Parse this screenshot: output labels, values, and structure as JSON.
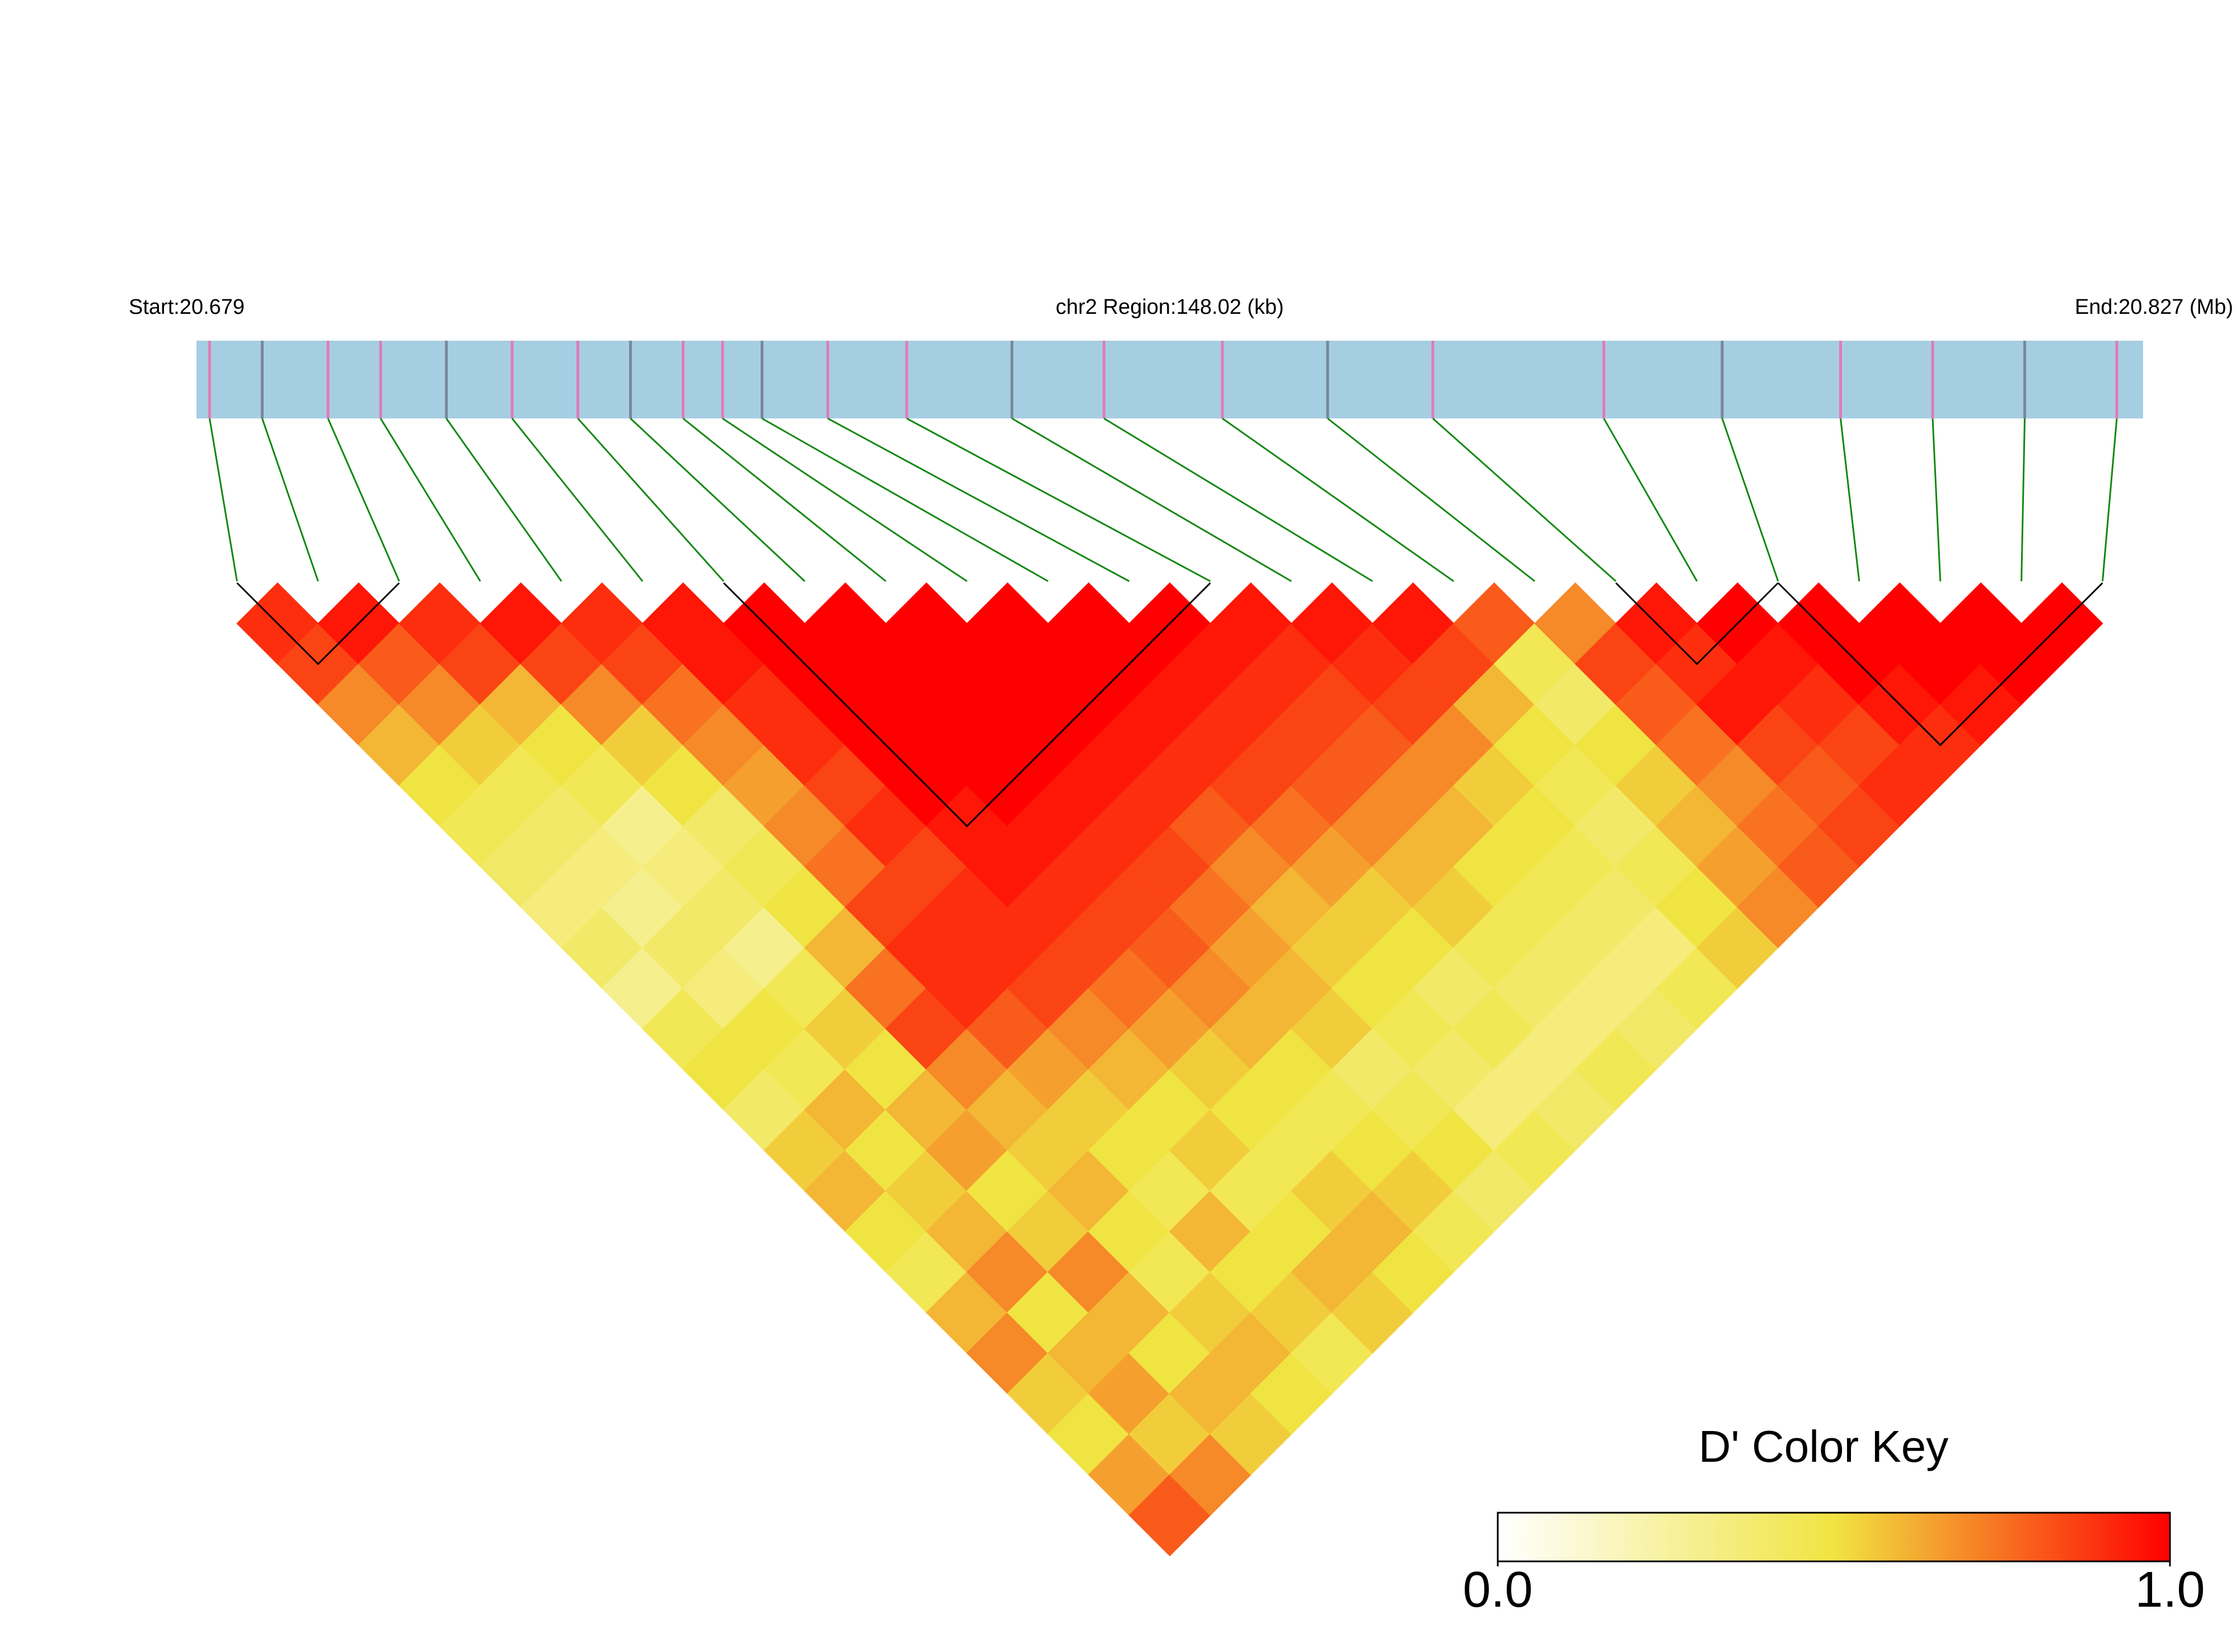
{
  "chart_data": {
    "type": "ld_heatmap",
    "title": "chr2 Region:148.02 (kb)",
    "start_label": "Start:20.679",
    "end_label": "End:20.827 (Mb)",
    "xlim": [
      20.679,
      20.827
    ],
    "snp_positions": [
      20.68,
      20.684,
      20.689,
      20.693,
      20.698,
      20.703,
      20.708,
      20.712,
      20.716,
      20.719,
      20.722,
      20.727,
      20.733,
      20.741,
      20.748,
      20.757,
      20.765,
      20.773,
      20.786,
      20.795,
      20.804,
      20.811,
      20.818,
      20.825
    ],
    "matrix": [
      [
        0.9,
        0.85,
        0.7,
        0.6,
        0.5,
        0.45,
        0.4,
        0.35,
        0.4,
        0.3,
        0.45,
        0.5,
        0.4,
        0.55,
        0.6,
        0.5,
        0.45,
        0.6,
        0.7,
        0.55,
        0.5,
        0.65,
        0.8
      ],
      [
        0.95,
        0.8,
        0.7,
        0.55,
        0.45,
        0.4,
        0.35,
        0.3,
        0.4,
        0.35,
        0.5,
        0.45,
        0.6,
        0.5,
        0.55,
        0.6,
        0.7,
        0.5,
        0.6,
        0.65,
        0.55,
        0.7
      ],
      [
        0.9,
        0.85,
        0.6,
        0.5,
        0.45,
        0.3,
        0.35,
        0.4,
        0.3,
        0.45,
        0.55,
        0.5,
        0.6,
        0.65,
        0.5,
        0.55,
        0.7,
        0.6,
        0.5,
        0.6,
        0.55
      ],
      [
        0.95,
        0.85,
        0.7,
        0.55,
        0.5,
        0.4,
        0.45,
        0.5,
        0.6,
        0.75,
        0.85,
        0.7,
        0.6,
        0.55,
        0.6,
        0.5,
        0.45,
        0.55,
        0.6,
        0.5
      ],
      [
        0.9,
        0.85,
        0.75,
        0.7,
        0.65,
        0.7,
        0.75,
        0.85,
        0.9,
        0.9,
        0.8,
        0.65,
        0.55,
        0.5,
        0.45,
        0.6,
        0.5,
        0.55,
        0.45
      ],
      [
        0.95,
        0.95,
        0.9,
        0.9,
        0.85,
        0.9,
        0.85,
        0.9,
        0.9,
        0.85,
        0.7,
        0.6,
        0.5,
        0.55,
        0.45,
        0.5,
        0.6,
        0.55
      ],
      [
        1,
        1,
        1,
        1,
        1,
        0.95,
        0.95,
        0.9,
        0.85,
        0.75,
        0.65,
        0.55,
        0.5,
        0.45,
        0.55,
        0.6,
        0.5
      ],
      [
        1,
        1,
        1,
        1,
        1,
        0.95,
        0.9,
        0.85,
        0.8,
        0.7,
        0.6,
        0.5,
        0.45,
        0.5,
        0.55,
        0.45
      ],
      [
        1,
        1,
        1,
        1,
        0.95,
        0.9,
        0.85,
        0.75,
        0.65,
        0.6,
        0.55,
        0.4,
        0.45,
        0.5,
        0.4
      ],
      [
        1,
        1,
        1,
        0.95,
        0.9,
        0.8,
        0.7,
        0.6,
        0.55,
        0.5,
        0.45,
        0.4,
        0.35,
        0.45
      ],
      [
        1,
        1,
        0.95,
        0.9,
        0.85,
        0.75,
        0.65,
        0.55,
        0.5,
        0.4,
        0.45,
        0.35,
        0.4
      ],
      [
        1,
        0.95,
        0.9,
        0.85,
        0.8,
        0.7,
        0.6,
        0.55,
        0.45,
        0.4,
        0.35,
        0.45
      ],
      [
        0.95,
        0.9,
        0.85,
        0.8,
        0.7,
        0.6,
        0.5,
        0.45,
        0.4,
        0.35,
        0.4
      ],
      [
        0.95,
        0.9,
        0.85,
        0.7,
        0.55,
        0.5,
        0.45,
        0.4,
        0.35,
        0.45
      ],
      [
        0.95,
        0.85,
        0.6,
        0.5,
        0.45,
        0.4,
        0.45,
        0.5,
        0.55
      ],
      [
        0.8,
        0.45,
        0.4,
        0.5,
        0.55,
        0.6,
        0.65,
        0.7
      ],
      [
        0.7,
        0.85,
        0.8,
        0.75,
        0.7,
        0.75,
        0.8
      ],
      [
        0.95,
        0.9,
        0.95,
        0.85,
        0.8,
        0.85
      ],
      [
        1,
        0.95,
        0.9,
        0.85,
        0.9
      ],
      [
        1,
        1,
        0.95,
        0.9
      ],
      [
        1,
        1,
        0.95
      ],
      [
        1,
        1
      ],
      [
        1
      ]
    ],
    "blocks": [
      [
        0,
        2
      ],
      [
        6,
        12
      ],
      [
        17,
        19
      ],
      [
        19,
        23
      ]
    ],
    "colors": [
      "#ffffff",
      "#f0e442",
      "#ff0000"
    ],
    "legend_title": "D' Color Key",
    "clim": [
      0,
      1
    ],
    "cticks": [
      {
        "value": 0,
        "label": "0.0"
      },
      {
        "value": 1,
        "label": "1.0"
      }
    ]
  }
}
